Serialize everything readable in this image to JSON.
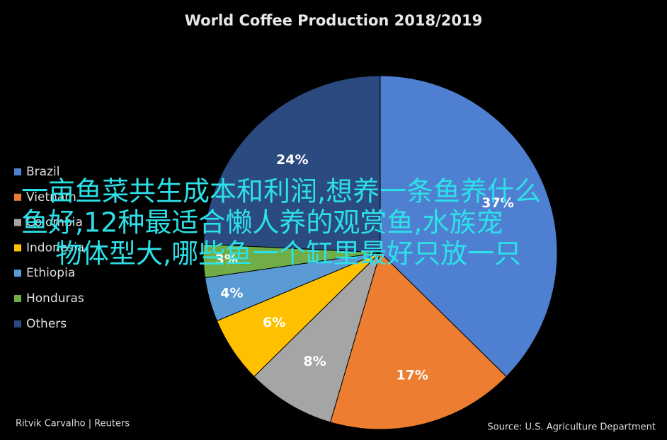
{
  "chart_data": {
    "type": "pie",
    "title": "World Coffee Production 2018/2019",
    "categories": [
      "Brazil",
      "Vietnam",
      "Colombia",
      "Indonesia",
      "Ethiopia",
      "Honduras",
      "Others"
    ],
    "values": [
      37,
      17,
      8,
      6,
      4,
      3,
      24
    ],
    "value_labels": [
      "37%",
      "17%",
      "8%",
      "6%",
      "4%",
      "3%",
      "24%"
    ],
    "colors": [
      "#4f7fd0",
      "#ed7d31",
      "#a5a5a5",
      "#ffc000",
      "#5b9bd5",
      "#70ad47",
      "#2a4a80"
    ],
    "legend": "left",
    "credit": "Ritvik Carvalho | Reuters",
    "source": "Source: U.S. Agriculture Department"
  },
  "overlay": [
    "一亩鱼菜共生成本和利润,想养一条鱼养什么",
    "鱼好,12种最适合懒人养的观赏鱼,水族宠",
    "物体型大,哪些鱼一个缸里最好只放一只"
  ]
}
